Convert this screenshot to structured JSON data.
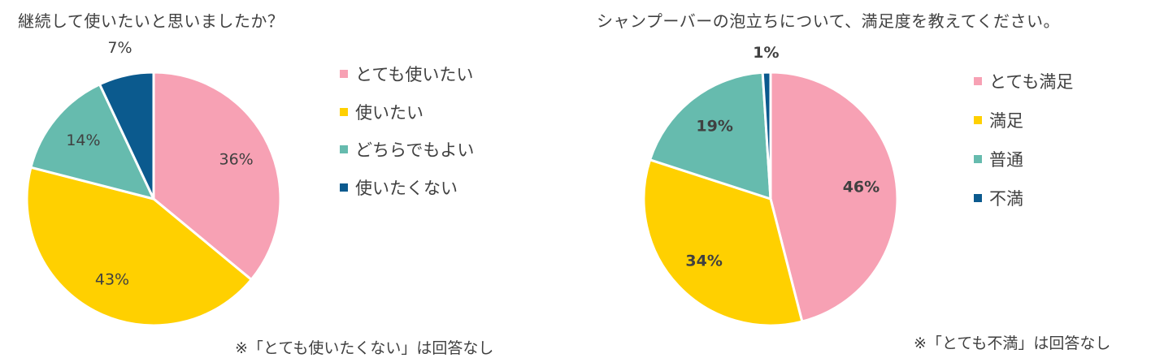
{
  "chart_data": [
    {
      "type": "pie",
      "title": "継続して使いたいと思いましたか？",
      "categories": [
        "とても使いたい",
        "使いたい",
        "どちらでもよい",
        "使いたくない"
      ],
      "values": [
        36,
        43,
        14,
        7
      ],
      "data_labels": [
        "36%",
        "43%",
        "14%",
        "7%"
      ],
      "colors": [
        "#F7A1B4",
        "#FFD000",
        "#66BBAE",
        "#0B5A8E"
      ],
      "legend_position": "right",
      "start_angle_deg": 0,
      "direction": "clockwise",
      "footnote": "※「とても使いたくない」は回答なし"
    },
    {
      "type": "pie",
      "title": "シャンプーバーの泡立ちについて、満足度を教えてください。",
      "categories": [
        "とても満足",
        "満足",
        "普通",
        "不満"
      ],
      "values": [
        46,
        34,
        19,
        1
      ],
      "data_labels": [
        "46%",
        "34%",
        "19%",
        "1%"
      ],
      "colors": [
        "#F7A1B4",
        "#FFD000",
        "#66BBAE",
        "#0B5A8E"
      ],
      "legend_position": "right",
      "start_angle_deg": 0,
      "direction": "clockwise",
      "footnote": "※「とても不満」は回答なし"
    }
  ]
}
